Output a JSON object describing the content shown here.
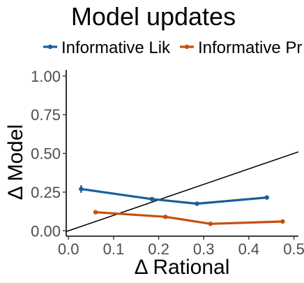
{
  "chart_data": {
    "type": "line",
    "title": "Model updates",
    "xlabel": "Δ Rational",
    "ylabel": "Δ Model",
    "xlim": [
      -0.005,
      0.51
    ],
    "ylim": [
      -0.035,
      1.04
    ],
    "x_ticks": [
      0.0,
      0.1,
      0.2,
      0.3,
      0.4,
      0.5
    ],
    "x_tick_labels": [
      "0.0",
      "0.1",
      "0.2",
      "0.3",
      "0.4",
      "0.5"
    ],
    "y_ticks": [
      0.0,
      0.25,
      0.5,
      0.75,
      1.0
    ],
    "y_tick_labels": [
      "0.00",
      "0.25",
      "0.50",
      "0.75",
      "1.00"
    ],
    "grid": false,
    "legend_position": "top",
    "reference_line": {
      "type": "identity",
      "color": "#000000"
    },
    "series": [
      {
        "name": "Informative Lik",
        "color": "#1a5e9c",
        "x": [
          0.028,
          0.185,
          0.285,
          0.44
        ],
        "y": [
          0.27,
          0.205,
          0.175,
          0.215
        ],
        "error": [
          0.025,
          0.008,
          0.008,
          0.008
        ]
      },
      {
        "name": "Informative Pr",
        "color": "#c94e0e",
        "x": [
          0.06,
          0.215,
          0.315,
          0.475
        ],
        "y": [
          0.12,
          0.09,
          0.045,
          0.06
        ],
        "error": [
          0.006,
          0.006,
          0.006,
          0.006
        ]
      }
    ]
  }
}
